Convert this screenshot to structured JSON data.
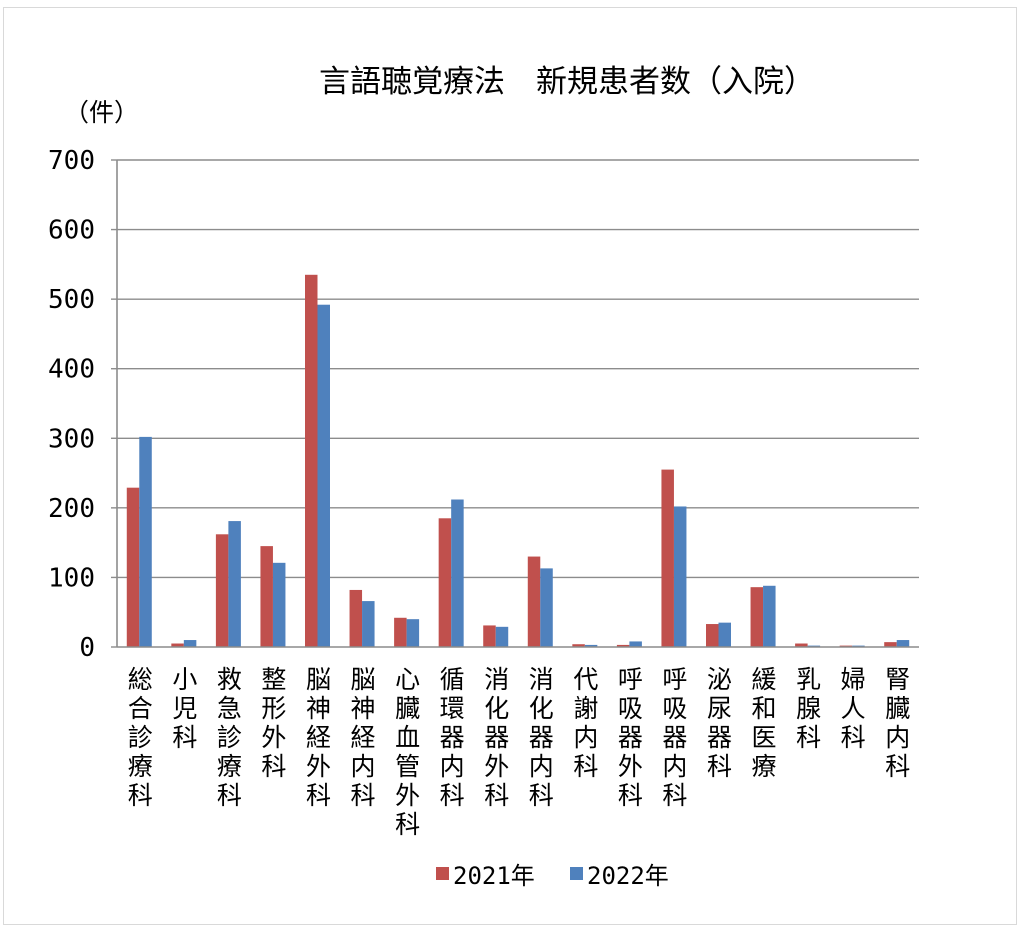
{
  "chart_data": {
    "type": "bar",
    "title": "言語聴覚療法　新規患者数（入院）",
    "unit_label": "（件）",
    "categories": [
      "総合診療科",
      "小児科",
      "救急診療科",
      "整形外科",
      "脳神経外科",
      "脳神経内科",
      "心臓血管外科",
      "循環器内科",
      "消化器外科",
      "消化器内科",
      "代謝内科",
      "呼吸器外科",
      "呼吸器内科",
      "泌尿器科",
      "緩和医療",
      "乳腺科",
      "婦人科",
      "腎臓内科"
    ],
    "series": [
      {
        "name": "2021年",
        "color": "#c0504d",
        "values": [
          229,
          5,
          162,
          145,
          535,
          82,
          42,
          185,
          31,
          130,
          4,
          3,
          255,
          33,
          86,
          5,
          2,
          7
        ]
      },
      {
        "name": "2022年",
        "color": "#4f81bd",
        "values": [
          302,
          10,
          181,
          121,
          492,
          66,
          40,
          212,
          29,
          113,
          3,
          8,
          202,
          35,
          88,
          2,
          2,
          10
        ]
      }
    ],
    "ylim": [
      0,
      700
    ],
    "yticks": [
      "0",
      "100",
      "200",
      "300",
      "400",
      "500",
      "600",
      "700"
    ],
    "grid": true,
    "legend_position": "bottom"
  }
}
